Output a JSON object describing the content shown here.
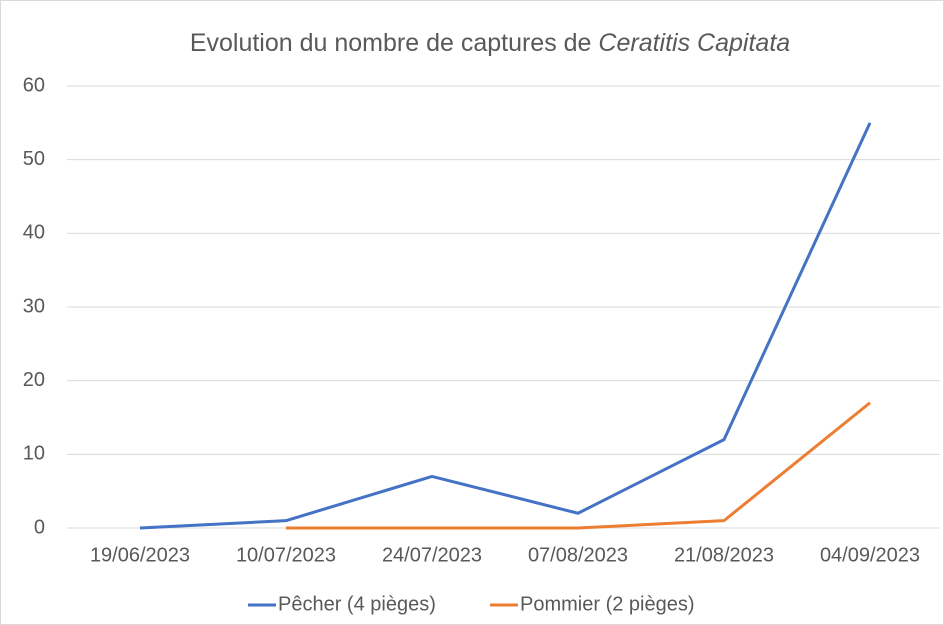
{
  "chart_data": {
    "type": "line",
    "title": "Evolution du nombre de captures de",
    "title_italic": "Ceratitis Capitata",
    "categories": [
      "19/06/2023",
      "10/07/2023",
      "24/07/2023",
      "07/08/2023",
      "21/08/2023",
      "04/09/2023"
    ],
    "series": [
      {
        "name": "Pêcher (4 pièges)",
        "color": "#4472c4",
        "values": [
          0,
          1,
          7,
          2,
          12,
          55
        ]
      },
      {
        "name": "Pommier (2 pièges)",
        "color": "#ed7d31",
        "values": [
          null,
          0,
          0,
          0,
          1,
          17
        ]
      }
    ],
    "ylim": [
      0,
      60
    ],
    "yticks": [
      0,
      10,
      20,
      30,
      40,
      50,
      60
    ],
    "grid": true,
    "legend": "bottom"
  }
}
